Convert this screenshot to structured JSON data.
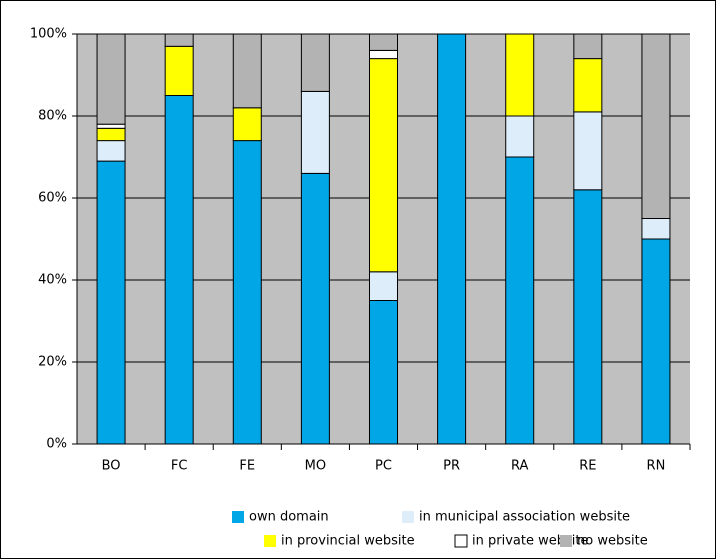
{
  "chart_data": {
    "type": "bar",
    "stacked": true,
    "categories": [
      "BO",
      "FC",
      "FE",
      "MO",
      "PC",
      "PR",
      "RA",
      "RE",
      "RN"
    ],
    "series": [
      {
        "name": "own domain",
        "color": "#00a6e6",
        "values": [
          69,
          85,
          74,
          66,
          35,
          100,
          70,
          62,
          50
        ]
      },
      {
        "name": "in municipal association website",
        "color": "#ddeefa",
        "values": [
          5,
          0,
          0,
          20,
          7,
          0,
          10,
          19,
          5
        ]
      },
      {
        "name": "in provincial website",
        "color": "#ffff00",
        "values": [
          3,
          12,
          8,
          0,
          52,
          0,
          20,
          13,
          0
        ]
      },
      {
        "name": "in private website",
        "color": "#ffffff",
        "values": [
          1,
          0,
          0,
          0,
          2,
          0,
          0,
          0,
          0
        ]
      },
      {
        "name": "no website",
        "color": "#b3b3b3",
        "values": [
          22,
          3,
          18,
          14,
          4,
          0,
          0,
          6,
          45
        ]
      }
    ],
    "ylim": [
      0,
      100
    ],
    "yticks": [
      {
        "value": 0,
        "label": "0%"
      },
      {
        "value": 20,
        "label": "20%"
      },
      {
        "value": 40,
        "label": "40%"
      },
      {
        "value": 60,
        "label": "60%"
      },
      {
        "value": 80,
        "label": "80%"
      },
      {
        "value": 100,
        "label": "100%"
      }
    ],
    "grid": true,
    "legend": "bottom"
  }
}
